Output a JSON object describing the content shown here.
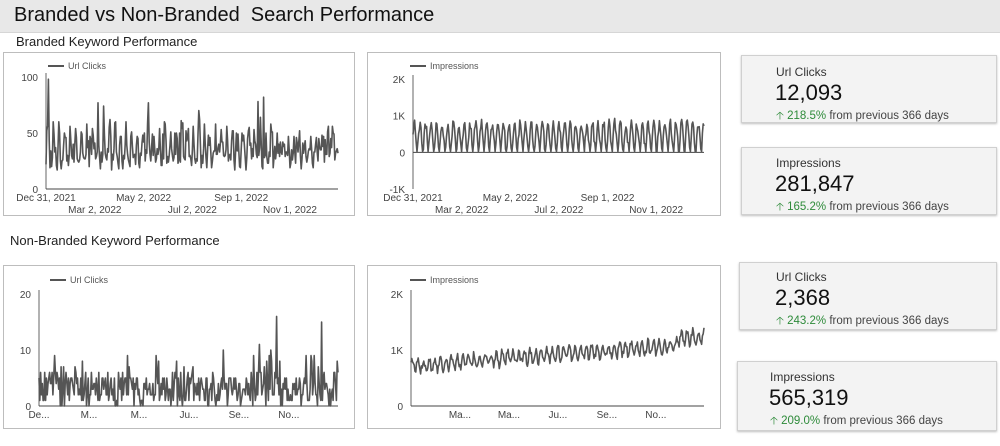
{
  "header": {
    "title": "Branded vs Non-Branded  Search Performance"
  },
  "sections": [
    {
      "title": "Branded Keyword Performance"
    },
    {
      "title": "Non-Branded Keyword Performance"
    }
  ],
  "scorecards": [
    {
      "label": "Url Clicks",
      "value": "12,093",
      "delta_pct": "218.5%",
      "delta_text": "from previous 366 days",
      "delta_direction": "up"
    },
    {
      "label": "Impressions",
      "value": "281,847",
      "delta_pct": "165.2%",
      "delta_text": "from previous 366 days",
      "delta_direction": "up"
    },
    {
      "label": "Url Clicks",
      "value": "2,368",
      "delta_pct": "243.2%",
      "delta_text": "from previous 366 days",
      "delta_direction": "up"
    },
    {
      "label": "Impressions",
      "value": "565,319",
      "delta_pct": "209.0%",
      "delta_text": "from previous 366 days",
      "delta_direction": "up"
    }
  ],
  "colors": {
    "line": "#555555",
    "delta_up": "#2e8b3a",
    "header_bg": "#e8e8e8"
  },
  "chart_data": [
    {
      "type": "line",
      "series": [
        {
          "name": "Url Clicks",
          "profile": "branded_clicks"
        }
      ],
      "x_start": "2021-12-31",
      "x_end": "2022-12-31",
      "ylim": [
        0,
        100
      ],
      "yticks": [
        "0",
        "50",
        "100"
      ],
      "xtick_labels": [
        {
          "date": "2021-12-31",
          "label": "Dec 31, 2021",
          "row": 1
        },
        {
          "date": "2022-03-02",
          "label": "Mar 2, 2022",
          "row": 2
        },
        {
          "date": "2022-05-02",
          "label": "May 2, 2022",
          "row": 1
        },
        {
          "date": "2022-07-02",
          "label": "Jul 2, 2022",
          "row": 2
        },
        {
          "date": "2022-09-01",
          "label": "Sep 1, 2022",
          "row": 1
        },
        {
          "date": "2022-11-01",
          "label": "Nov 1, 2022",
          "row": 2
        }
      ],
      "legend": "top-left",
      "grid": false
    },
    {
      "type": "line",
      "series": [
        {
          "name": "Impressions",
          "profile": "branded_impressions"
        }
      ],
      "x_start": "2021-12-31",
      "x_end": "2022-12-31",
      "ylim": [
        -1000,
        2000
      ],
      "yticks": [
        "-1K",
        "0",
        "1K",
        "2K"
      ],
      "xtick_labels": [
        {
          "date": "2021-12-31",
          "label": "Dec 31, 2021",
          "row": 1
        },
        {
          "date": "2022-03-02",
          "label": "Mar 2, 2022",
          "row": 2
        },
        {
          "date": "2022-05-02",
          "label": "May 2, 2022",
          "row": 1
        },
        {
          "date": "2022-07-02",
          "label": "Jul 2, 2022",
          "row": 2
        },
        {
          "date": "2022-09-01",
          "label": "Sep 1, 2022",
          "row": 1
        },
        {
          "date": "2022-11-01",
          "label": "Nov 1, 2022",
          "row": 2
        }
      ],
      "legend": "top-left",
      "grid": false
    },
    {
      "type": "line",
      "series": [
        {
          "name": "Url Clicks",
          "profile": "nonbranded_clicks"
        }
      ],
      "x_start": "2021-12-31",
      "x_end": "2022-12-31",
      "ylim": [
        0,
        20
      ],
      "yticks": [
        "0",
        "10",
        "20"
      ],
      "xtick_labels": [
        {
          "date": "2021-12-31",
          "label": "De...",
          "row": 1
        },
        {
          "date": "2022-03-02",
          "label": "M...",
          "row": 1
        },
        {
          "date": "2022-05-02",
          "label": "M...",
          "row": 1
        },
        {
          "date": "2022-07-02",
          "label": "Ju...",
          "row": 1
        },
        {
          "date": "2022-09-01",
          "label": "Se...",
          "row": 1
        },
        {
          "date": "2022-11-01",
          "label": "No...",
          "row": 1
        }
      ],
      "legend": "top-left",
      "grid": false
    },
    {
      "type": "line",
      "series": [
        {
          "name": "Impressions",
          "profile": "nonbranded_impressions"
        }
      ],
      "x_start": "2021-12-31",
      "x_end": "2022-12-31",
      "ylim": [
        0,
        2000
      ],
      "yticks": [
        "0",
        "1K",
        "2K"
      ],
      "xtick_labels": [
        {
          "date": "2022-03-02",
          "label": "Ma...",
          "row": 1
        },
        {
          "date": "2022-05-02",
          "label": "Ma...",
          "row": 1
        },
        {
          "date": "2022-07-02",
          "label": "Ju...",
          "row": 1
        },
        {
          "date": "2022-09-01",
          "label": "Se...",
          "row": 1
        },
        {
          "date": "2022-11-01",
          "label": "No...",
          "row": 1
        }
      ],
      "legend": "top-left",
      "grid": false
    }
  ]
}
